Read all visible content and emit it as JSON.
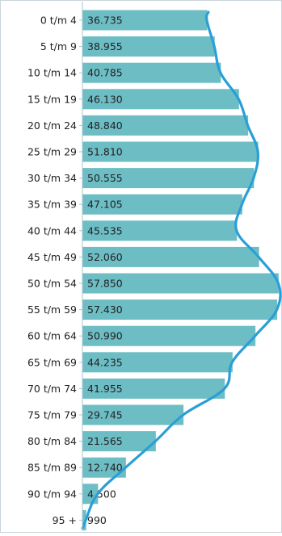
{
  "chart_data": {
    "type": "bar",
    "orientation": "horizontal",
    "categories": [
      "0 t/m 4",
      "5 t/m 9",
      "10 t/m 14",
      "15 t/m 19",
      "20 t/m 24",
      "25 t/m 29",
      "30 t/m 34",
      "35 t/m 39",
      "40 t/m 44",
      "45 t/m 49",
      "50 t/m 54",
      "55 t/m 59",
      "60 t/m 64",
      "65 t/m 69",
      "70 t/m 74",
      "75 t/m 79",
      "80 t/m 84",
      "85 t/m 89",
      "90 t/m 94",
      "95 +"
    ],
    "values": [
      36735,
      38955,
      40785,
      46130,
      48840,
      51810,
      50555,
      47105,
      45535,
      52060,
      57850,
      57430,
      50990,
      44235,
      41955,
      29745,
      21565,
      12740,
      4500,
      990
    ],
    "data_labels": [
      "36.735",
      "38.955",
      "40.785",
      "46.130",
      "48.840",
      "51.810",
      "50.555",
      "47.105",
      "45.535",
      "52.060",
      "57.850",
      "57.430",
      "50.990",
      "44.235",
      "41.955",
      "29.745",
      "21.565",
      "12.740",
      "4.500",
      "990"
    ],
    "overlay_line": {
      "type": "line",
      "values": [
        36735,
        38955,
        40785,
        46130,
        48840,
        51810,
        50555,
        47105,
        45535,
        52060,
        57850,
        57430,
        50990,
        44235,
        41955,
        29745,
        21565,
        12740,
        4500,
        990
      ]
    },
    "xlim": [
      0,
      58000
    ],
    "title": "",
    "xlabel": "",
    "ylabel": "",
    "grid": false,
    "legend": "none",
    "colors": {
      "bar": "#6dbdc5",
      "line": "#2a9fd6",
      "axis": "#a9c7cf",
      "text": "#222222",
      "frame": "#cbd5da"
    }
  }
}
